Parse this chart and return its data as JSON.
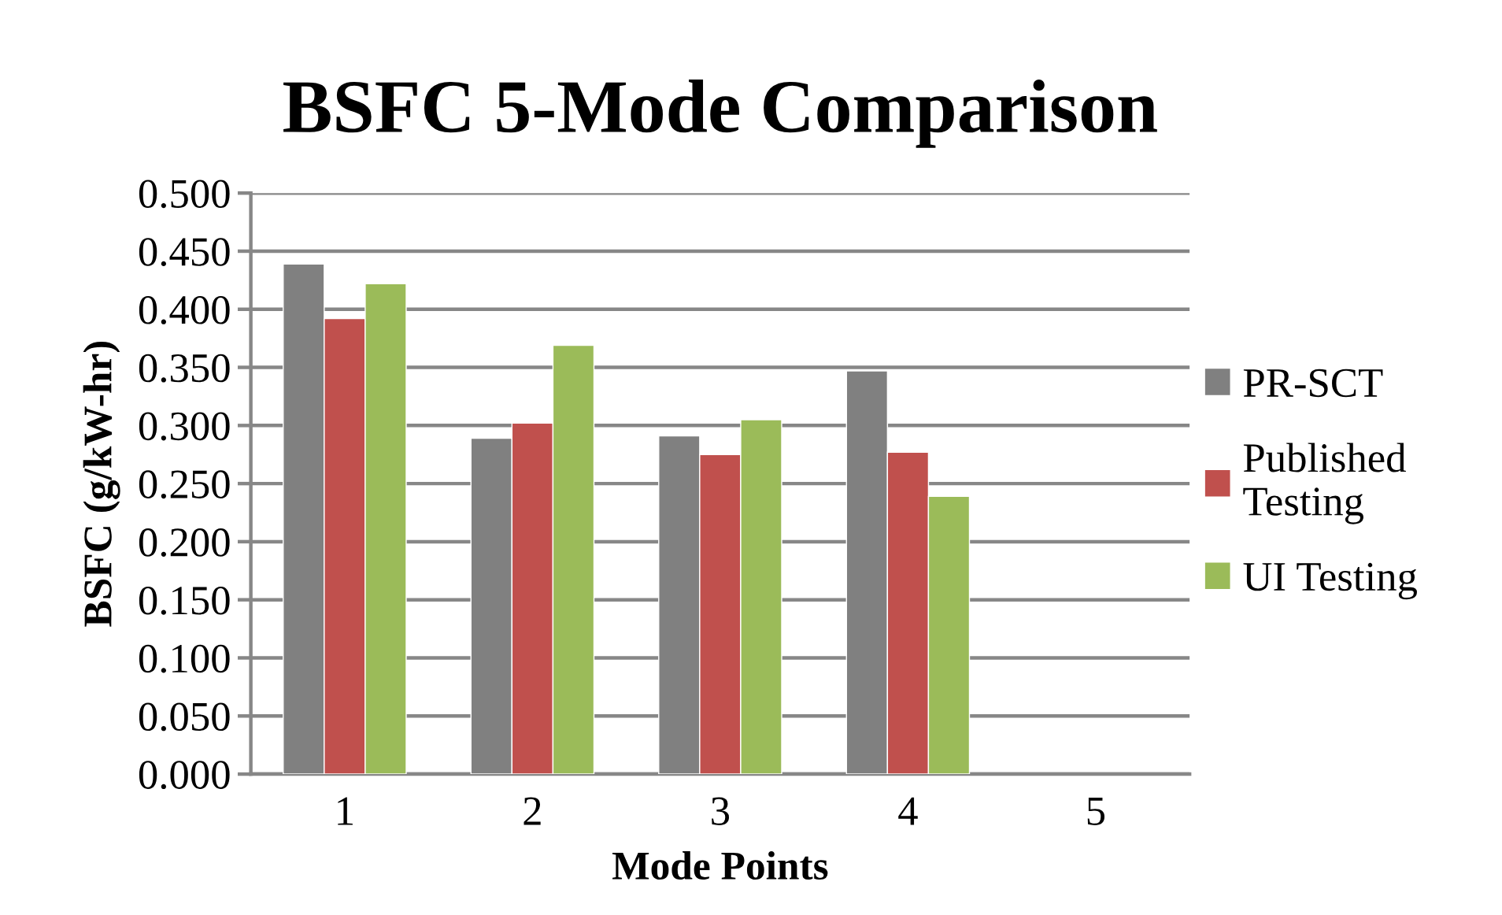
{
  "chart_data": {
    "type": "bar",
    "title": "BSFC 5-Mode Comparison",
    "xlabel": "Mode Points",
    "ylabel": "BSFC (g/kW-hr)",
    "categories": [
      "1",
      "2",
      "3",
      "4",
      "5"
    ],
    "series": [
      {
        "name": "PR-SCT",
        "color": "#808080",
        "values": [
          0.439,
          0.289,
          0.291,
          0.347,
          null
        ]
      },
      {
        "name": "Published Testing",
        "color": "#c0504d",
        "values": [
          0.392,
          0.302,
          0.275,
          0.277,
          null
        ]
      },
      {
        "name": "UI Testing",
        "color": "#9bbb59",
        "values": [
          0.422,
          0.369,
          0.305,
          0.239,
          null
        ]
      }
    ],
    "ylim": [
      0,
      0.5
    ],
    "yticks": [
      {
        "value": 0,
        "label": "0.000"
      },
      {
        "value": 0.05,
        "label": "0.050"
      },
      {
        "value": 0.1,
        "label": "0.100"
      },
      {
        "value": 0.15,
        "label": "0.150"
      },
      {
        "value": 0.2,
        "label": "0.200"
      },
      {
        "value": 0.25,
        "label": "0.250"
      },
      {
        "value": 0.3,
        "label": "0.300"
      },
      {
        "value": 0.35,
        "label": "0.350"
      },
      {
        "value": 0.4,
        "label": "0.400"
      },
      {
        "value": 0.45,
        "label": "0.450"
      },
      {
        "value": 0.5,
        "label": "0.500"
      }
    ],
    "grid": "y",
    "legend": "right"
  }
}
